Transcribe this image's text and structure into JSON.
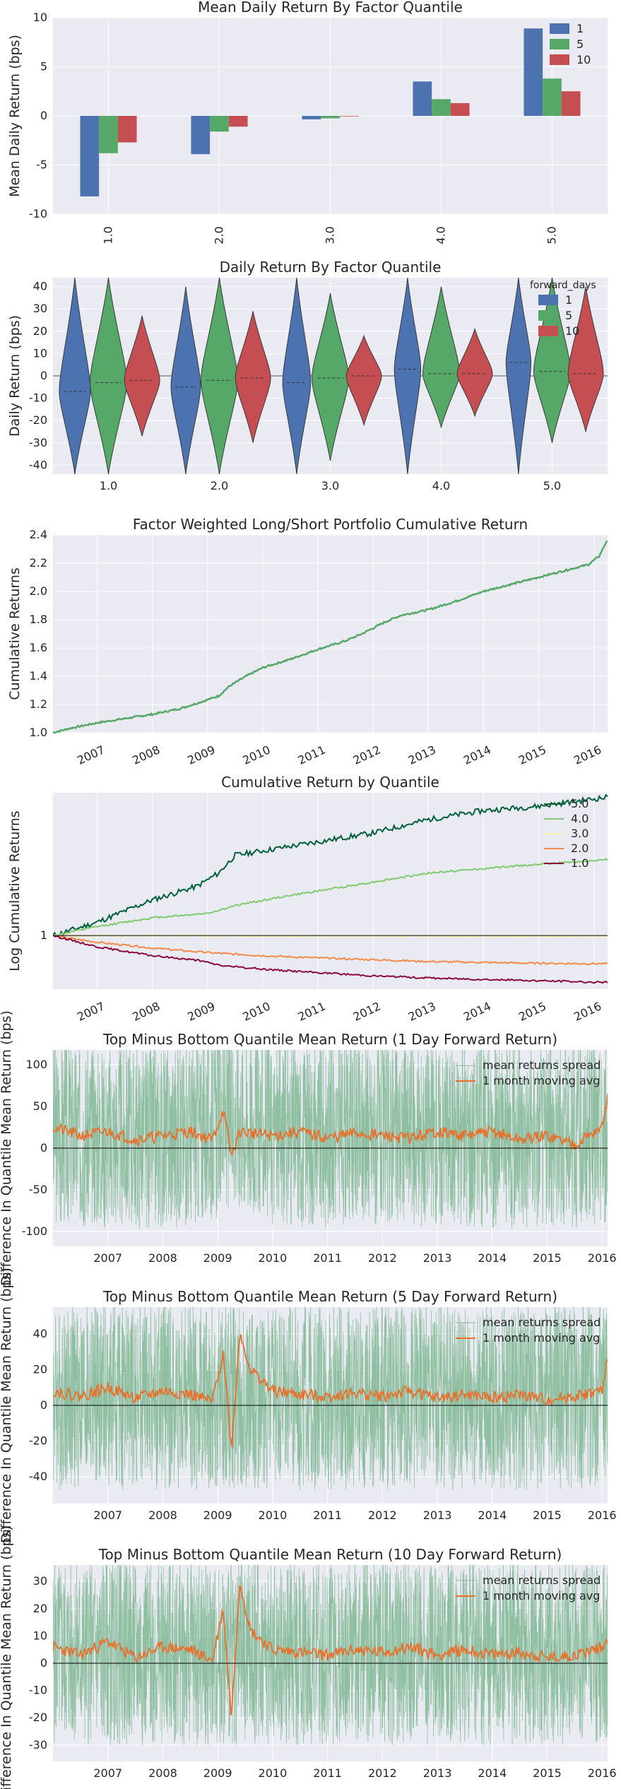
{
  "colors": {
    "bg": "#EAEAF2",
    "grid": "#FFFFFF",
    "blue": "#4C72B0",
    "green": "#55A868",
    "red": "#C44E52",
    "spread": "#7FB793",
    "mavg": "#E8702A",
    "q5": "#00613A",
    "q4": "#7FCB6E",
    "q3": "#F5F0AE",
    "q2": "#F58A4A",
    "q1": "#8A0B3C"
  },
  "chart_data": [
    {
      "type": "bar",
      "title": "Mean Daily Return By Factor Quantile",
      "xlabel": "",
      "ylabel": "Mean Daily Return (bps)",
      "ylim": [
        -10,
        10
      ],
      "yticks": [
        "-10",
        "-5",
        "0",
        "5",
        "10"
      ],
      "categories": [
        "1.0",
        "2.0",
        "3.0",
        "4.0",
        "5.0"
      ],
      "series": [
        {
          "name": "1",
          "values": [
            -8.2,
            -3.9,
            -0.35,
            3.5,
            8.9
          ]
        },
        {
          "name": "5",
          "values": [
            -3.8,
            -1.6,
            -0.25,
            1.7,
            3.8
          ]
        },
        {
          "name": "10",
          "values": [
            -2.7,
            -1.1,
            -0.05,
            1.3,
            2.5
          ]
        }
      ],
      "legend_placement": "top-right"
    },
    {
      "type": "violin",
      "title": "Daily Return By Factor Quantile",
      "xlabel": "",
      "ylabel": "Daily Return (bps)",
      "ylim": [
        -44,
        44
      ],
      "yticks": [
        "-40",
        "-30",
        "-20",
        "-10",
        "0",
        "10",
        "20",
        "30",
        "40"
      ],
      "categories": [
        "1.0",
        "2.0",
        "3.0",
        "4.0",
        "5.0"
      ],
      "legend_title": "forward_days",
      "series": [
        {
          "name": "1",
          "extent": [
            [
              -44,
              44
            ],
            [
              -44,
              40
            ],
            [
              -44,
              44
            ],
            [
              -44,
              44
            ],
            [
              -44,
              44
            ]
          ],
          "median": [
            -7,
            -5,
            -3,
            3,
            6
          ]
        },
        {
          "name": "5",
          "extent": [
            [
              -44,
              44
            ],
            [
              -44,
              44
            ],
            [
              -38,
              37
            ],
            [
              -23,
              40
            ],
            [
              -30,
              44
            ]
          ],
          "median": [
            -3,
            -2,
            -1,
            1,
            2
          ]
        },
        {
          "name": "10",
          "extent": [
            [
              -27,
              27
            ],
            [
              -30,
              29
            ],
            [
              -22,
              18
            ],
            [
              -18,
              21
            ],
            [
              -25,
              40
            ]
          ],
          "median": [
            -2,
            -1,
            0,
            1,
            1
          ]
        }
      ],
      "legend_placement": "top-right"
    },
    {
      "type": "line",
      "title": "Factor Weighted Long/Short Portfolio Cumulative Return",
      "xlabel": "",
      "ylabel": "Cumulative Returns",
      "ylim": [
        1.0,
        2.4
      ],
      "yticks": [
        "1.0",
        "1.2",
        "1.4",
        "1.6",
        "1.8",
        "2.0",
        "2.2",
        "2.4"
      ],
      "xticks": [
        "2007",
        "2008",
        "2009",
        "2010",
        "2011",
        "2012",
        "2013",
        "2014",
        "2015",
        "2016"
      ],
      "xlim": [
        2006.2,
        2016.25
      ],
      "series": [
        {
          "x": [
            2006.2,
            2006.5,
            2007.0,
            2007.5,
            2008.0,
            2008.5,
            2008.9,
            2009.2,
            2009.4,
            2009.7,
            2010.0,
            2010.5,
            2011.0,
            2011.5,
            2011.8,
            2012.2,
            2012.5,
            2013.0,
            2013.5,
            2014.0,
            2014.5,
            2015.0,
            2015.5,
            2015.9,
            2016.1,
            2016.25
          ],
          "y": [
            1.0,
            1.03,
            1.07,
            1.1,
            1.13,
            1.17,
            1.22,
            1.26,
            1.33,
            1.4,
            1.46,
            1.52,
            1.59,
            1.65,
            1.7,
            1.78,
            1.83,
            1.87,
            1.93,
            2.0,
            2.05,
            2.1,
            2.15,
            2.19,
            2.25,
            2.37
          ]
        }
      ]
    },
    {
      "type": "line",
      "title": "Cumulative Return by Quantile",
      "xlabel": "",
      "ylabel": "Log Cumulative Returns",
      "ylim": [
        0.88,
        1.32
      ],
      "yticks": [
        "1"
      ],
      "ytick_values": [
        1
      ],
      "xticks": [
        "2007",
        "2008",
        "2009",
        "2010",
        "2011",
        "2012",
        "2013",
        "2014",
        "2015",
        "2016"
      ],
      "xlim": [
        2006.2,
        2016.25
      ],
      "legend_placement": "top-right",
      "series": [
        {
          "name": "5.0",
          "x": [
            2006.2,
            2007.0,
            2008.0,
            2008.8,
            2009.2,
            2009.5,
            2010.5,
            2012.0,
            2013.0,
            2014.0,
            2015.0,
            2016.25
          ],
          "y": [
            1.0,
            1.03,
            1.08,
            1.11,
            1.14,
            1.18,
            1.2,
            1.23,
            1.26,
            1.28,
            1.29,
            1.31
          ]
        },
        {
          "name": "4.0",
          "x": [
            2006.2,
            2007.0,
            2008.0,
            2009.0,
            2009.6,
            2010.5,
            2012.0,
            2013.0,
            2014.0,
            2015.0,
            2016.25
          ],
          "y": [
            1.0,
            1.02,
            1.04,
            1.05,
            1.07,
            1.09,
            1.12,
            1.14,
            1.15,
            1.16,
            1.17
          ]
        },
        {
          "name": "3.0",
          "x": [
            2006.2,
            2016.25
          ],
          "y": [
            1.0,
            0.998
          ]
        },
        {
          "name": "2.0",
          "x": [
            2006.2,
            2007.0,
            2008.0,
            2009.0,
            2010.0,
            2011.0,
            2012.0,
            2013.0,
            2014.0,
            2015.0,
            2016.25
          ],
          "y": [
            1.0,
            0.985,
            0.972,
            0.962,
            0.955,
            0.95,
            0.946,
            0.942,
            0.94,
            0.938,
            0.937
          ]
        },
        {
          "name": "1.0",
          "x": [
            2006.2,
            2007.0,
            2008.0,
            2008.8,
            2009.3,
            2010.0,
            2011.0,
            2012.0,
            2013.0,
            2014.0,
            2015.0,
            2016.25
          ],
          "y": [
            1.0,
            0.975,
            0.955,
            0.945,
            0.932,
            0.925,
            0.917,
            0.91,
            0.905,
            0.902,
            0.899,
            0.895
          ]
        }
      ]
    },
    {
      "type": "area",
      "title": "Top Minus Bottom Quantile Mean Return (1 Day Forward Return)",
      "xlabel": "",
      "ylabel": "Difference In Quantile Mean Return (bps)",
      "ylim": [
        -118,
        118
      ],
      "yticks": [
        "-100",
        "-50",
        "0",
        "50",
        "100"
      ],
      "ytick_values": [
        -100,
        -50,
        0,
        50,
        100
      ],
      "xticks": [
        "2007",
        "2008",
        "2009",
        "2010",
        "2011",
        "2012",
        "2013",
        "2014",
        "2015",
        "2016"
      ],
      "xlim": [
        2006.0,
        2016.1
      ],
      "legend_placement": "top-right",
      "series": [
        {
          "name": "mean returns spread",
          "x": [
            2006.0,
            2007.0,
            2008.0,
            2008.8,
            2009.3,
            2010.0,
            2011.0,
            2012.0,
            2013.0,
            2014.0,
            2015.0,
            2016.1
          ],
          "y": [
            20,
            15,
            15,
            20,
            40,
            20,
            15,
            15,
            20,
            15,
            15,
            20
          ]
        },
        {
          "name": "1 month moving avg",
          "x": [
            2006.0,
            2006.5,
            2007.0,
            2007.5,
            2008.0,
            2008.5,
            2008.9,
            2009.1,
            2009.25,
            2009.4,
            2010.0,
            2010.5,
            2011.0,
            2011.5,
            2012.0,
            2012.5,
            2013.0,
            2013.5,
            2014.0,
            2014.5,
            2015.0,
            2015.5,
            2016.0,
            2016.1
          ],
          "y": [
            25,
            15,
            20,
            10,
            15,
            20,
            10,
            45,
            -10,
            20,
            15,
            20,
            12,
            18,
            15,
            12,
            20,
            15,
            20,
            10,
            15,
            5,
            25,
            60
          ]
        }
      ]
    },
    {
      "type": "area",
      "title": "Top Minus Bottom Quantile Mean Return (5 Day Forward Return)",
      "xlabel": "",
      "ylabel": "Difference In Quantile Mean Return (bps)",
      "ylim": [
        -55,
        55
      ],
      "yticks": [
        "-40",
        "-20",
        "0",
        "20",
        "40"
      ],
      "ytick_values": [
        -40,
        -20,
        0,
        20,
        40
      ],
      "xticks": [
        "2007",
        "2008",
        "2009",
        "2010",
        "2011",
        "2012",
        "2013",
        "2014",
        "2015",
        "2016"
      ],
      "xlim": [
        2006.0,
        2016.1
      ],
      "legend_placement": "top-right",
      "series": [
        {
          "name": "mean returns spread",
          "x": [
            2006.0,
            2016.1
          ],
          "y": [
            5,
            5
          ]
        },
        {
          "name": "1 month moving avg",
          "x": [
            2006.0,
            2006.5,
            2007.0,
            2007.5,
            2008.0,
            2008.5,
            2008.9,
            2009.1,
            2009.25,
            2009.4,
            2009.6,
            2010.0,
            2010.5,
            2011.0,
            2011.5,
            2012.0,
            2012.5,
            2013.0,
            2013.5,
            2014.0,
            2014.5,
            2015.0,
            2015.5,
            2016.0,
            2016.1
          ],
          "y": [
            8,
            5,
            10,
            4,
            8,
            6,
            2,
            30,
            -25,
            40,
            20,
            8,
            6,
            5,
            7,
            5,
            8,
            4,
            6,
            4,
            6,
            3,
            5,
            8,
            25
          ]
        }
      ]
    },
    {
      "type": "area",
      "title": "Top Minus Bottom Quantile Mean Return (10 Day Forward Return)",
      "xlabel": "",
      "ylabel": "Difference In Quantile Mean Return (bps)",
      "ylim": [
        -36,
        36
      ],
      "yticks": [
        "-30",
        "-20",
        "-10",
        "0",
        "10",
        "20",
        "30"
      ],
      "ytick_values": [
        -30,
        -20,
        -10,
        0,
        10,
        20,
        30
      ],
      "xticks": [
        "2007",
        "2008",
        "2009",
        "2010",
        "2011",
        "2012",
        "2013",
        "2014",
        "2015",
        "2016"
      ],
      "xlim": [
        2006.0,
        2016.1
      ],
      "legend_placement": "top-right",
      "series": [
        {
          "name": "mean returns spread",
          "x": [
            2006.0,
            2016.1
          ],
          "y": [
            4,
            4
          ]
        },
        {
          "name": "1 month moving avg",
          "x": [
            2006.0,
            2006.5,
            2007.0,
            2007.5,
            2008.0,
            2008.5,
            2008.9,
            2009.1,
            2009.25,
            2009.4,
            2009.6,
            2010.0,
            2010.5,
            2011.0,
            2011.5,
            2012.0,
            2012.5,
            2013.0,
            2013.5,
            2014.0,
            2014.5,
            2015.0,
            2015.5,
            2016.0,
            2016.1
          ],
          "y": [
            6,
            3,
            8,
            2,
            6,
            5,
            1,
            20,
            -20,
            30,
            12,
            5,
            4,
            3,
            5,
            4,
            6,
            3,
            5,
            3,
            4,
            2,
            3,
            6,
            8
          ]
        }
      ]
    }
  ]
}
